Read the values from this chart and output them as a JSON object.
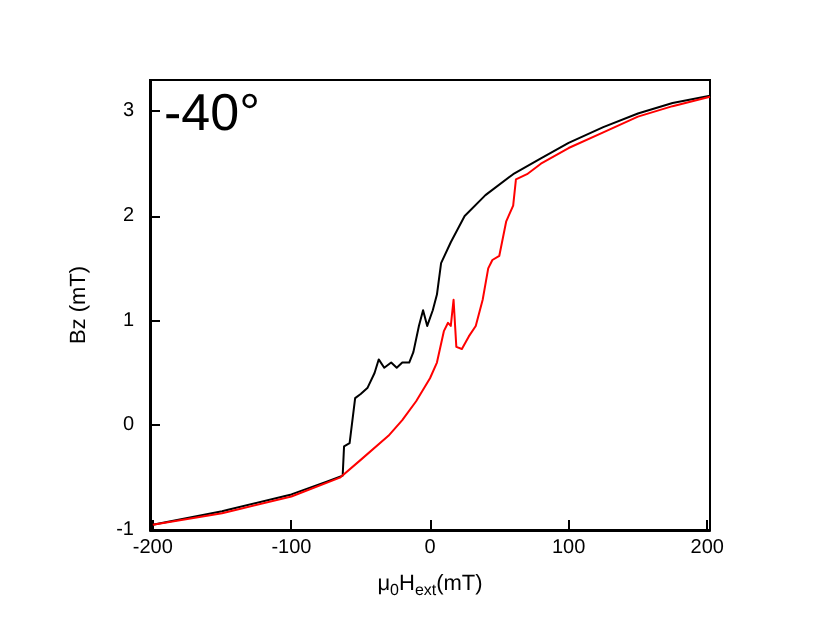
{
  "chart_data": {
    "type": "line",
    "xlabel": "μ$_{0}$H$_{ext}$(mT)",
    "ylabel": "Bz (mT)",
    "annotations": [
      "-40°"
    ],
    "xlim": [
      -202,
      202
    ],
    "xticks": [
      -200,
      -100,
      0,
      100,
      200
    ],
    "ylim": [
      -1,
      3.3
    ],
    "yticks": [
      -1,
      0,
      1,
      2,
      3
    ],
    "marker": "none",
    "line_style": "solid",
    "series": [
      {
        "color": "#000000",
        "x": [
          -200,
          -150,
          -100,
          -75,
          -63,
          -62,
          -58,
          -54,
          -50,
          -45,
          -40,
          -37,
          -33,
          -28,
          -24,
          -20,
          -15,
          -12,
          -8,
          -5,
          -2,
          2,
          5,
          8,
          15,
          25,
          40,
          60,
          80,
          100,
          125,
          150,
          175,
          202
        ],
        "values": [
          -0.95,
          -0.82,
          -0.66,
          -0.54,
          -0.48,
          -0.2,
          -0.17,
          0.26,
          0.3,
          0.36,
          0.5,
          0.63,
          0.55,
          0.6,
          0.55,
          0.6,
          0.6,
          0.7,
          0.95,
          1.1,
          0.95,
          1.1,
          1.25,
          1.55,
          1.75,
          2.0,
          2.2,
          2.4,
          2.55,
          2.7,
          2.85,
          2.98,
          3.08,
          3.15
        ]
      },
      {
        "color": "#ff0000",
        "x": [
          -200,
          -150,
          -100,
          -65,
          -50,
          -30,
          -20,
          -10,
          0,
          5,
          10,
          13,
          15,
          17,
          19,
          23,
          28,
          33,
          38,
          42,
          45,
          50,
          55,
          60,
          62,
          70,
          80,
          100,
          125,
          150,
          175,
          202
        ],
        "values": [
          -0.95,
          -0.84,
          -0.68,
          -0.5,
          -0.33,
          -0.1,
          0.05,
          0.23,
          0.45,
          0.6,
          0.9,
          0.98,
          0.95,
          1.2,
          0.75,
          0.73,
          0.85,
          0.95,
          1.2,
          1.5,
          1.58,
          1.62,
          1.95,
          2.1,
          2.35,
          2.4,
          2.5,
          2.65,
          2.8,
          2.95,
          3.05,
          3.14
        ]
      }
    ]
  }
}
